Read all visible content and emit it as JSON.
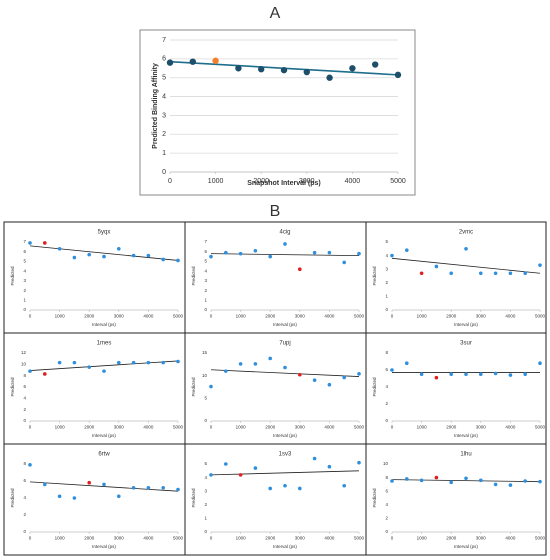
{
  "panels": [
    "A",
    "B"
  ],
  "chart_data": [
    {
      "type": "scatter",
      "xlabel": "Snapshot Interval (ps)",
      "ylabel": "Predicted Binding Affinity",
      "x": [
        0,
        500,
        1000,
        1500,
        2000,
        2500,
        3000,
        3500,
        4000,
        4500,
        5000
      ],
      "values": [
        5.8,
        5.85,
        5.9,
        5.5,
        5.45,
        5.4,
        5.3,
        5.0,
        5.5,
        5.7,
        5.15
      ],
      "colors": [
        "#1d4f6b",
        "#1d4f6b",
        "#f08030",
        "#1d4f6b",
        "#1d4f6b",
        "#1d4f6b",
        "#1d4f6b",
        "#1d4f6b",
        "#1d4f6b",
        "#1d4f6b",
        "#1d4f6b"
      ],
      "trendline": [
        5.85,
        5.15
      ],
      "trend_color": "#1f6e8c",
      "xlim": [
        0,
        5000
      ],
      "xticks": [
        0,
        1000,
        2000,
        3000,
        4000,
        5000
      ],
      "ylim": [
        0,
        7
      ],
      "yticks": [
        0,
        1,
        2,
        3,
        4,
        5,
        6,
        7
      ],
      "grid": true
    },
    {
      "type": "scatter",
      "title": "5yqx",
      "xlabel": "Interval (ps)",
      "ylabel": "Predicted",
      "x": [
        0,
        500,
        1000,
        1500,
        2000,
        2500,
        3000,
        3500,
        4000,
        4500,
        5000
      ],
      "values": [
        6.9,
        6.9,
        6.3,
        5.4,
        5.7,
        5.5,
        6.3,
        5.6,
        5.6,
        5.2,
        5.1
      ],
      "colors": [
        "#2f8fdc",
        "#e02020",
        "#2f8fdc",
        "#2f8fdc",
        "#2f8fdc",
        "#2f8fdc",
        "#2f8fdc",
        "#2f8fdc",
        "#2f8fdc",
        "#2f8fdc",
        "#2f8fdc"
      ],
      "trendline": [
        6.6,
        5.1
      ],
      "trend_color": "#222222",
      "xlim": [
        0,
        5000
      ],
      "xticks": [
        0,
        1000,
        2000,
        3000,
        4000,
        5000
      ],
      "ylim": [
        0,
        7
      ],
      "yticks": [
        0,
        1,
        2,
        3,
        4,
        5,
        6,
        7
      ],
      "grid": false
    },
    {
      "type": "scatter",
      "title": "4cig",
      "xlabel": "Interval (ps)",
      "ylabel": "Predicted",
      "x": [
        0,
        500,
        1000,
        1500,
        2000,
        2500,
        3000,
        3500,
        4000,
        4500,
        5000
      ],
      "values": [
        5.5,
        5.9,
        5.8,
        6.1,
        5.5,
        6.8,
        4.2,
        5.9,
        5.9,
        4.9,
        5.8
      ],
      "colors": [
        "#2f8fdc",
        "#2f8fdc",
        "#2f8fdc",
        "#2f8fdc",
        "#2f8fdc",
        "#2f8fdc",
        "#e02020",
        "#2f8fdc",
        "#2f8fdc",
        "#2f8fdc",
        "#2f8fdc"
      ],
      "trendline": [
        5.8,
        5.6
      ],
      "trend_color": "#222222",
      "xlim": [
        0,
        5000
      ],
      "xticks": [
        0,
        1000,
        2000,
        3000,
        4000,
        5000
      ],
      "ylim": [
        0,
        7
      ],
      "yticks": [
        0,
        1,
        2,
        3,
        4,
        5,
        6,
        7
      ],
      "grid": false
    },
    {
      "type": "scatter",
      "title": "2vmc",
      "xlabel": "Interval (ps)",
      "ylabel": "Predicted",
      "x": [
        0,
        500,
        1000,
        1500,
        2000,
        2500,
        3000,
        3500,
        4000,
        4500,
        5000
      ],
      "values": [
        4.0,
        4.4,
        2.7,
        3.2,
        2.7,
        4.5,
        2.7,
        2.7,
        2.7,
        2.7,
        3.3
      ],
      "colors": [
        "#2f8fdc",
        "#2f8fdc",
        "#e02020",
        "#2f8fdc",
        "#2f8fdc",
        "#2f8fdc",
        "#2f8fdc",
        "#2f8fdc",
        "#2f8fdc",
        "#2f8fdc",
        "#2f8fdc"
      ],
      "trendline": [
        3.8,
        2.7
      ],
      "trend_color": "#222222",
      "xlim": [
        0,
        5000
      ],
      "xticks": [
        0,
        1000,
        2000,
        3000,
        4000,
        5000
      ],
      "ylim": [
        0,
        5
      ],
      "yticks": [
        0,
        1,
        2,
        3,
        4,
        5
      ],
      "grid": false
    },
    {
      "type": "scatter",
      "title": "1mes",
      "xlabel": "Interval (ps)",
      "ylabel": "Predicted",
      "x": [
        0,
        500,
        1000,
        1500,
        2000,
        2500,
        3000,
        3500,
        4000,
        4500,
        5000
      ],
      "values": [
        8.8,
        8.3,
        10.3,
        10.3,
        9.5,
        8.8,
        10.3,
        10.3,
        10.3,
        10.3,
        10.5
      ],
      "colors": [
        "#2f8fdc",
        "#e02020",
        "#2f8fdc",
        "#2f8fdc",
        "#2f8fdc",
        "#2f8fdc",
        "#2f8fdc",
        "#2f8fdc",
        "#2f8fdc",
        "#2f8fdc",
        "#2f8fdc"
      ],
      "trendline": [
        8.9,
        10.6
      ],
      "trend_color": "#222222",
      "xlim": [
        0,
        5000
      ],
      "xticks": [
        0,
        1000,
        2000,
        3000,
        4000,
        5000
      ],
      "ylim": [
        0,
        12
      ],
      "yticks": [
        0,
        2,
        4,
        6,
        8,
        10,
        12
      ],
      "grid": false
    },
    {
      "type": "scatter",
      "title": "7upj",
      "xlabel": "Interval (ps)",
      "ylabel": "Predicted",
      "x": [
        0,
        500,
        1000,
        1500,
        2000,
        2500,
        3000,
        3500,
        4000,
        4500,
        5000
      ],
      "values": [
        7.6,
        11,
        12.6,
        12.6,
        13.8,
        11.8,
        10.2,
        9,
        8,
        9.6,
        10.4
      ],
      "colors": [
        "#2f8fdc",
        "#2f8fdc",
        "#2f8fdc",
        "#2f8fdc",
        "#2f8fdc",
        "#2f8fdc",
        "#e02020",
        "#2f8fdc",
        "#2f8fdc",
        "#2f8fdc",
        "#2f8fdc"
      ],
      "trendline": [
        11.3,
        9.8
      ],
      "trend_color": "#222222",
      "xlim": [
        0,
        5000
      ],
      "xticks": [
        0,
        1000,
        2000,
        3000,
        4000,
        5000
      ],
      "ylim": [
        0,
        15
      ],
      "yticks": [
        0,
        5,
        10,
        15
      ],
      "grid": false
    },
    {
      "type": "scatter",
      "title": "3sur",
      "xlabel": "Interval (ps)",
      "ylabel": "Predicted",
      "x": [
        0,
        500,
        1000,
        1500,
        2000,
        2500,
        3000,
        3500,
        4000,
        4500,
        5000
      ],
      "values": [
        6,
        6.8,
        5.5,
        5.1,
        5.5,
        5.5,
        5.5,
        5.6,
        5.4,
        5.5,
        6.8
      ],
      "colors": [
        "#2f8fdc",
        "#2f8fdc",
        "#2f8fdc",
        "#e02020",
        "#2f8fdc",
        "#2f8fdc",
        "#2f8fdc",
        "#2f8fdc",
        "#2f8fdc",
        "#2f8fdc",
        "#2f8fdc"
      ],
      "trendline": [
        5.7,
        5.7
      ],
      "trend_color": "#222222",
      "xlim": [
        0,
        5000
      ],
      "xticks": [
        0,
        1000,
        2000,
        3000,
        4000,
        5000
      ],
      "ylim": [
        0,
        8
      ],
      "yticks": [
        0,
        2,
        4,
        6,
        8
      ],
      "grid": false
    },
    {
      "type": "scatter",
      "title": "6rtw",
      "xlabel": "Interval (ps)",
      "ylabel": "Predicted",
      "x": [
        0,
        500,
        1000,
        1500,
        2000,
        2500,
        3000,
        3500,
        4000,
        4500,
        5000
      ],
      "values": [
        7.9,
        5.6,
        4.2,
        4.0,
        5.8,
        5.6,
        4.2,
        5.2,
        5.2,
        5.2,
        5.0
      ],
      "colors": [
        "#2f8fdc",
        "#2f8fdc",
        "#2f8fdc",
        "#2f8fdc",
        "#e02020",
        "#2f8fdc",
        "#2f8fdc",
        "#2f8fdc",
        "#2f8fdc",
        "#2f8fdc",
        "#2f8fdc"
      ],
      "trendline": [
        5.9,
        4.8
      ],
      "trend_color": "#222222",
      "xlim": [
        0,
        5000
      ],
      "xticks": [
        0,
        1000,
        2000,
        3000,
        4000,
        5000
      ],
      "ylim": [
        0,
        8
      ],
      "yticks": [
        0,
        2,
        4,
        6,
        8
      ],
      "grid": false
    },
    {
      "type": "scatter",
      "title": "1sv3",
      "xlabel": "Interval (ps)",
      "ylabel": "Predicted",
      "x": [
        0,
        500,
        1000,
        1500,
        2000,
        2500,
        3000,
        3500,
        4000,
        4500,
        5000
      ],
      "values": [
        4.2,
        5.0,
        4.2,
        4.7,
        3.2,
        3.4,
        3.2,
        5.4,
        4.8,
        3.4,
        5.1
      ],
      "colors": [
        "#2f8fdc",
        "#2f8fdc",
        "#e02020",
        "#2f8fdc",
        "#2f8fdc",
        "#2f8fdc",
        "#2f8fdc",
        "#2f8fdc",
        "#2f8fdc",
        "#2f8fdc",
        "#2f8fdc"
      ],
      "trendline": [
        4.2,
        4.5
      ],
      "trend_color": "#222222",
      "xlim": [
        0,
        5000
      ],
      "xticks": [
        0,
        1000,
        2000,
        3000,
        4000,
        5000
      ],
      "ylim": [
        0,
        5
      ],
      "yticks": [
        0,
        1,
        2,
        3,
        4,
        5
      ],
      "grid": false
    },
    {
      "type": "scatter",
      "title": "1lhu",
      "xlabel": "Interval (ps)",
      "ylabel": "Predicted",
      "x": [
        0,
        500,
        1000,
        1500,
        2000,
        2500,
        3000,
        3500,
        4000,
        4500,
        5000
      ],
      "values": [
        7.5,
        7.8,
        7.6,
        8.0,
        7.3,
        7.9,
        7.6,
        7.0,
        6.9,
        7.5,
        7.4
      ],
      "colors": [
        "#2f8fdc",
        "#2f8fdc",
        "#2f8fdc",
        "#e02020",
        "#2f8fdc",
        "#2f8fdc",
        "#2f8fdc",
        "#2f8fdc",
        "#2f8fdc",
        "#2f8fdc",
        "#2f8fdc"
      ],
      "trendline": [
        7.7,
        7.4
      ],
      "trend_color": "#222222",
      "xlim": [
        0,
        5000
      ],
      "xticks": [
        0,
        1000,
        2000,
        3000,
        4000,
        5000
      ],
      "ylim": [
        0,
        10
      ],
      "yticks": [
        0,
        2,
        4,
        6,
        8,
        10
      ],
      "grid": false
    }
  ]
}
